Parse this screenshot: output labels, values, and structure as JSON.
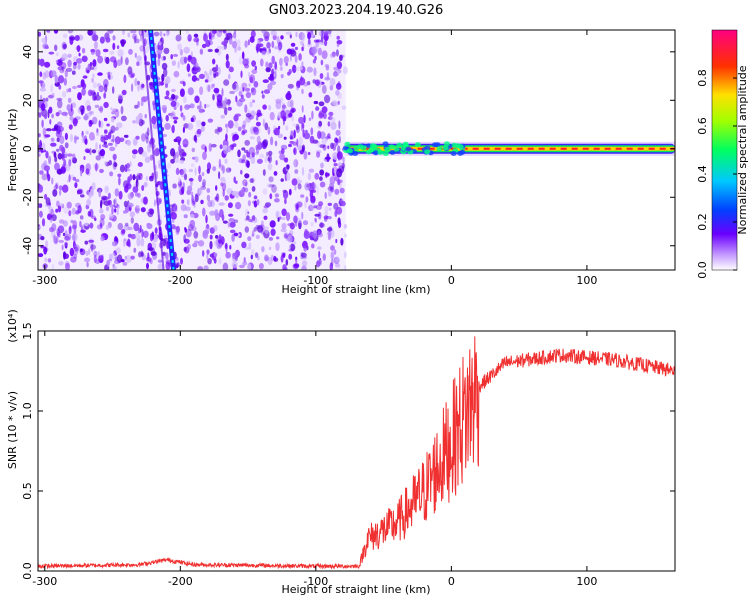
{
  "title": "GN03.2023.204.19.40.G26",
  "chart_data": [
    {
      "type": "heatmap",
      "panel": "top",
      "xlabel": "Height of straight line (km)",
      "ylabel": "Frequency (Hz)",
      "xlim": [
        -305,
        165
      ],
      "ylim": [
        -50,
        49
      ],
      "xticks": [
        -300,
        -200,
        -100,
        0,
        100
      ],
      "yticks": [
        40,
        20,
        0,
        -20,
        -40
      ],
      "colorbar": {
        "label": "Normalized spectral amplitude",
        "range": [
          0.0,
          1.0
        ],
        "ticks": [
          "0.0",
          "0.2",
          "0.4",
          "0.6",
          "0.8"
        ],
        "colormap": "rainbow"
      },
      "features": {
        "noise_region_x": [
          -305,
          -78
        ],
        "diagonal_line": {
          "x_start": -222,
          "y_start": 49,
          "x_end": -205,
          "y_end": -50
        },
        "center_band": {
          "x_start": -78,
          "x_end": 165,
          "y": 0
        }
      }
    },
    {
      "type": "line",
      "panel": "bottom",
      "xlabel": "Height of straight line (km)",
      "ylabel": "SNR (10 * v/v)",
      "multiplier": "(x10⁴)",
      "xlim": [
        -305,
        165
      ],
      "ylim": [
        0.0,
        1.5
      ],
      "xticks": [
        -300,
        -200,
        -100,
        0,
        100
      ],
      "yticks": [
        "0.0",
        "0.5",
        "1.0",
        "1.5"
      ],
      "color": "#f03030",
      "trend": [
        {
          "x": -305,
          "y": 0.03
        },
        {
          "x": -230,
          "y": 0.04
        },
        {
          "x": -210,
          "y": 0.07
        },
        {
          "x": -190,
          "y": 0.04
        },
        {
          "x": -100,
          "y": 0.03
        },
        {
          "x": -68,
          "y": 0.03
        },
        {
          "x": -62,
          "y": 0.2
        },
        {
          "x": -40,
          "y": 0.3
        },
        {
          "x": -20,
          "y": 0.5
        },
        {
          "x": 0,
          "y": 0.8
        },
        {
          "x": 20,
          "y": 1.15
        },
        {
          "x": 40,
          "y": 1.3
        },
        {
          "x": 80,
          "y": 1.35
        },
        {
          "x": 120,
          "y": 1.32
        },
        {
          "x": 165,
          "y": 1.25
        }
      ]
    }
  ]
}
